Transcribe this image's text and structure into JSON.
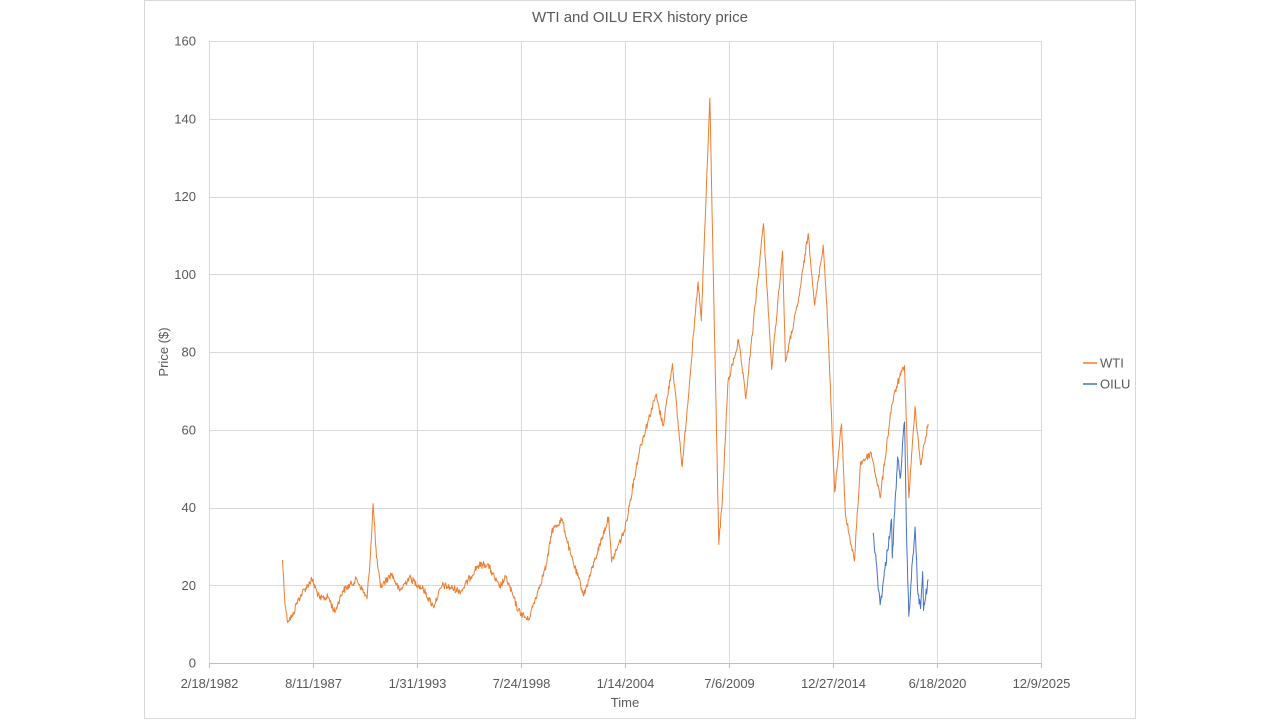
{
  "chart_data": {
    "type": "line",
    "title": "WTI and OILU ERX history price",
    "xlabel": "Time",
    "ylabel": "Price ($)",
    "xlim": [
      "1982-02-18",
      "2025-12-09"
    ],
    "ylim": [
      0,
      160
    ],
    "y_ticks": [
      0,
      20,
      40,
      60,
      80,
      100,
      120,
      140,
      160
    ],
    "x_tick_labels": [
      "2/18/1982",
      "8/11/1987",
      "1/31/1993",
      "7/24/1998",
      "1/14/2004",
      "7/6/2009",
      "12/27/2014",
      "6/18/2020",
      "12/9/2025"
    ],
    "grid": true,
    "legend_position": "right",
    "series": [
      {
        "name": "WTI",
        "color": "#ED7D31",
        "points": [
          [
            "1986-01-02",
            26.5
          ],
          [
            "1986-02-10",
            17.0
          ],
          [
            "1986-04-01",
            11.0
          ],
          [
            "1986-07-15",
            12.0
          ],
          [
            "1986-10-01",
            15.5
          ],
          [
            "1987-01-15",
            18.0
          ],
          [
            "1987-07-20",
            21.5
          ],
          [
            "1987-12-20",
            16.5
          ],
          [
            "1988-06-01",
            17.0
          ],
          [
            "1988-10-01",
            13.0
          ],
          [
            "1989-03-01",
            18.5
          ],
          [
            "1989-12-01",
            21.5
          ],
          [
            "1990-06-15",
            16.5
          ],
          [
            "1990-08-20",
            28.0
          ],
          [
            "1990-10-10",
            41.0
          ],
          [
            "1990-12-15",
            27.0
          ],
          [
            "1991-03-01",
            19.5
          ],
          [
            "1991-10-01",
            23.0
          ],
          [
            "1992-03-01",
            18.5
          ],
          [
            "1992-09-01",
            22.0
          ],
          [
            "1993-06-01",
            19.0
          ],
          [
            "1993-12-10",
            14.5
          ],
          [
            "1994-06-01",
            20.0
          ],
          [
            "1995-06-01",
            18.5
          ],
          [
            "1996-04-10",
            25.0
          ],
          [
            "1996-10-15",
            25.5
          ],
          [
            "1997-06-01",
            19.5
          ],
          [
            "1997-10-10",
            22.0
          ],
          [
            "1998-06-01",
            13.5
          ],
          [
            "1998-12-10",
            11.0
          ],
          [
            "1999-06-01",
            18.0
          ],
          [
            "1999-12-01",
            25.5
          ],
          [
            "2000-03-07",
            34.0
          ],
          [
            "2000-09-20",
            37.0
          ],
          [
            "2001-03-01",
            28.0
          ],
          [
            "2001-11-15",
            17.5
          ],
          [
            "2002-06-01",
            26.0
          ],
          [
            "2003-03-07",
            37.5
          ],
          [
            "2003-05-01",
            26.0
          ],
          [
            "2004-01-14",
            34.5
          ],
          [
            "2004-10-22",
            55.0
          ],
          [
            "2005-08-30",
            69.0
          ],
          [
            "2006-01-15",
            61.0
          ],
          [
            "2006-07-14",
            77.0
          ],
          [
            "2007-01-18",
            50.5
          ],
          [
            "2007-11-20",
            98.0
          ],
          [
            "2008-01-20",
            88.0
          ],
          [
            "2008-07-03",
            145.3
          ],
          [
            "2008-09-15",
            95.0
          ],
          [
            "2008-12-22",
            30.5
          ],
          [
            "2009-03-01",
            42.0
          ],
          [
            "2009-06-15",
            72.0
          ],
          [
            "2010-01-06",
            83.0
          ],
          [
            "2010-05-25",
            68.0
          ],
          [
            "2011-04-29",
            113.0
          ],
          [
            "2011-10-04",
            75.5
          ],
          [
            "2012-05-01",
            106.0
          ],
          [
            "2012-06-25",
            77.5
          ],
          [
            "2013-03-01",
            93.0
          ],
          [
            "2013-09-06",
            110.5
          ],
          [
            "2014-01-10",
            92.0
          ],
          [
            "2014-06-20",
            107.5
          ],
          [
            "2014-09-01",
            92.0
          ],
          [
            "2014-12-31",
            53.0
          ],
          [
            "2015-01-28",
            44.0
          ],
          [
            "2015-06-10",
            61.5
          ],
          [
            "2015-08-24",
            38.0
          ],
          [
            "2016-02-11",
            26.2
          ],
          [
            "2016-06-09",
            51.5
          ],
          [
            "2017-01-03",
            54.0
          ],
          [
            "2017-06-21",
            42.5
          ],
          [
            "2018-01-25",
            66.0
          ],
          [
            "2018-05-22",
            72.0
          ],
          [
            "2018-10-03",
            76.5
          ],
          [
            "2018-12-24",
            42.5
          ],
          [
            "2019-04-23",
            66.0
          ],
          [
            "2019-08-07",
            51.0
          ],
          [
            "2019-12-31",
            61.5
          ]
        ]
      },
      {
        "name": "OILU",
        "color": "#4472C4",
        "points": [
          [
            "2017-02-08",
            33.5
          ],
          [
            "2017-06-21",
            15.0
          ],
          [
            "2017-09-01",
            22.0
          ],
          [
            "2018-01-25",
            37.0
          ],
          [
            "2018-02-09",
            27.0
          ],
          [
            "2018-05-22",
            53.0
          ],
          [
            "2018-07-10",
            47.5
          ],
          [
            "2018-10-03",
            62.0
          ],
          [
            "2018-11-15",
            30.0
          ],
          [
            "2018-12-24",
            12.0
          ],
          [
            "2019-02-01",
            20.0
          ],
          [
            "2019-04-23",
            35.0
          ],
          [
            "2019-06-12",
            18.5
          ],
          [
            "2019-08-07",
            14.0
          ],
          [
            "2019-09-16",
            23.5
          ],
          [
            "2019-10-03",
            13.5
          ],
          [
            "2019-12-31",
            21.5
          ]
        ]
      }
    ]
  }
}
